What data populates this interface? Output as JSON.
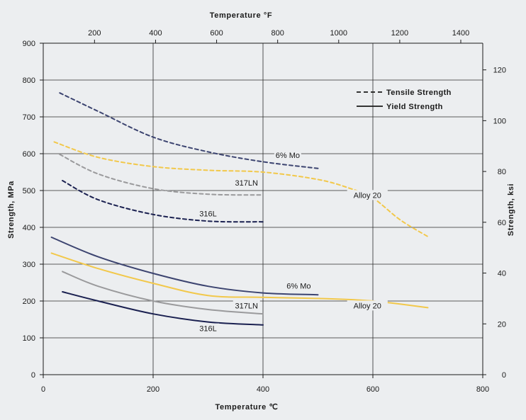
{
  "chart_data": {
    "type": "line",
    "x_bottom": {
      "label": "Temperature ℃",
      "range": [
        0,
        800
      ],
      "ticks": [
        0,
        200,
        400,
        600,
        800
      ]
    },
    "x_top": {
      "label": "Temperature °F",
      "range": [
        32,
        1472
      ],
      "ticks": [
        200,
        400,
        600,
        800,
        1000,
        1200,
        1400
      ]
    },
    "y_left": {
      "label": "Strength, MPa",
      "range": [
        0,
        900
      ],
      "ticks": [
        0,
        100,
        200,
        300,
        400,
        500,
        600,
        700,
        800,
        900
      ]
    },
    "y_right": {
      "label": "Strength, ksi",
      "range": [
        0,
        130.5
      ],
      "ticks": [
        0,
        20,
        40,
        60,
        80,
        100,
        120
      ]
    },
    "grid": true,
    "legend": {
      "position": "top-right",
      "items": [
        {
          "label": "Tensile Strength",
          "style": "dashed"
        },
        {
          "label": "Yield Strength",
          "style": "solid"
        }
      ]
    },
    "series": [
      {
        "name": "6% Mo",
        "kind": "tensile",
        "color": "#3c4470",
        "points": [
          [
            30,
            765
          ],
          [
            100,
            715
          ],
          [
            200,
            645
          ],
          [
            300,
            605
          ],
          [
            400,
            578
          ],
          [
            500,
            560
          ]
        ]
      },
      {
        "name": "317LN",
        "kind": "tensile",
        "color": "#9a9a9c",
        "points": [
          [
            30,
            598
          ],
          [
            100,
            545
          ],
          [
            200,
            505
          ],
          [
            300,
            490
          ],
          [
            400,
            488
          ]
        ]
      },
      {
        "name": "316L",
        "kind": "tensile",
        "color": "#1a2050",
        "points": [
          [
            35,
            527
          ],
          [
            100,
            475
          ],
          [
            200,
            435
          ],
          [
            300,
            417
          ],
          [
            400,
            415
          ]
        ]
      },
      {
        "name": "Alloy 20",
        "kind": "tensile",
        "color": "#f2c84a",
        "points": [
          [
            20,
            632
          ],
          [
            100,
            590
          ],
          [
            200,
            565
          ],
          [
            300,
            555
          ],
          [
            400,
            550
          ],
          [
            500,
            530
          ],
          [
            560,
            505
          ],
          [
            600,
            480
          ],
          [
            650,
            420
          ],
          [
            700,
            375
          ]
        ]
      },
      {
        "name": "6% Mo",
        "kind": "yield",
        "color": "#3c4470",
        "points": [
          [
            15,
            373
          ],
          [
            100,
            320
          ],
          [
            200,
            275
          ],
          [
            300,
            240
          ],
          [
            400,
            222
          ],
          [
            500,
            217
          ]
        ]
      },
      {
        "name": "317LN",
        "kind": "yield",
        "color": "#9a9a9c",
        "points": [
          [
            35,
            280
          ],
          [
            100,
            240
          ],
          [
            200,
            200
          ],
          [
            300,
            177
          ],
          [
            400,
            165
          ]
        ]
      },
      {
        "name": "316L",
        "kind": "yield",
        "color": "#1a2050",
        "points": [
          [
            35,
            225
          ],
          [
            100,
            200
          ],
          [
            200,
            165
          ],
          [
            300,
            143
          ],
          [
            400,
            135
          ]
        ]
      },
      {
        "name": "Alloy 20",
        "kind": "yield",
        "color": "#f2c84a",
        "points": [
          [
            15,
            330
          ],
          [
            100,
            288
          ],
          [
            200,
            248
          ],
          [
            300,
            215
          ],
          [
            400,
            210
          ],
          [
            500,
            207
          ],
          [
            600,
            200
          ],
          [
            700,
            182
          ]
        ]
      }
    ],
    "annotations": [
      {
        "text": "6% Mo",
        "x": 445,
        "y": 590
      },
      {
        "text": "317LN",
        "x": 370,
        "y": 515
      },
      {
        "text": "316L",
        "x": 300,
        "y": 432
      },
      {
        "text": "Alloy 20",
        "x": 590,
        "y": 482
      },
      {
        "text": "6% Mo",
        "x": 465,
        "y": 236
      },
      {
        "text": "317LN",
        "x": 370,
        "y": 182
      },
      {
        "text": "316L",
        "x": 300,
        "y": 120
      },
      {
        "text": "Alloy 20",
        "x": 590,
        "y": 182
      }
    ]
  }
}
